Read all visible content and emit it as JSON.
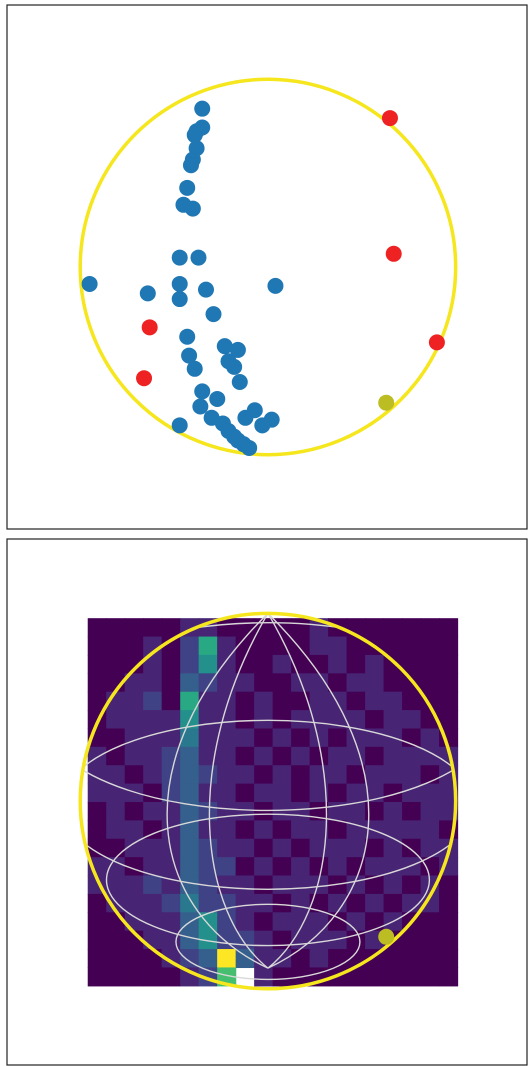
{
  "chart_data": [
    {
      "type": "scatter",
      "xlim": [
        -1.39,
        1.38
      ],
      "ylim": [
        -1.39,
        1.39
      ],
      "series": [
        {
          "color": "#1f77b4",
          "x": [
            -0.35,
            -0.35,
            -0.38,
            -0.39,
            -0.38,
            -0.4,
            -0.41,
            -0.43,
            -0.45,
            -0.4,
            -0.47,
            -0.37,
            -0.95,
            -0.47,
            -0.33,
            0.04,
            -0.64,
            -0.47,
            -0.29,
            -0.43,
            -0.23,
            -0.16,
            -0.42,
            -0.21,
            -0.18,
            -0.39,
            -0.15,
            -0.35,
            -0.27,
            -0.36,
            -0.07,
            -0.3,
            -0.12,
            0.02,
            -0.24,
            -0.47,
            -0.03,
            -0.21,
            -0.18,
            -0.16,
            -0.13,
            -0.1
          ],
          "values": [
            0.84,
            0.74,
            0.72,
            0.7,
            0.63,
            0.57,
            0.54,
            0.42,
            0.33,
            0.31,
            0.05,
            0.05,
            -0.09,
            -0.09,
            -0.12,
            -0.1,
            -0.14,
            -0.17,
            -0.25,
            -0.37,
            -0.42,
            -0.44,
            -0.47,
            -0.5,
            -0.53,
            -0.54,
            -0.61,
            -0.66,
            -0.7,
            -0.74,
            -0.76,
            -0.8,
            -0.8,
            -0.81,
            -0.83,
            -0.84,
            -0.84,
            -0.87,
            -0.9,
            -0.92,
            -0.94,
            -0.96
          ]
        },
        {
          "color": "#ee2222",
          "x": [
            0.65,
            0.67,
            -0.63,
            -0.66,
            0.9
          ],
          "values": [
            0.79,
            0.07,
            -0.32,
            -0.59,
            -0.4
          ]
        },
        {
          "color": "#bcbd22",
          "x": [
            0.63
          ],
          "values": [
            -0.72
          ]
        }
      ]
    },
    {
      "type": "heatmap",
      "xlim": [
        -1.39,
        1.38
      ],
      "ylim": [
        -1.4,
        1.39
      ],
      "extent": [
        -0.96,
        1.01,
        -0.98,
        0.97
      ],
      "clim": [
        0,
        10
      ],
      "colormap": [
        "#440154",
        "#482878",
        "#3e4989",
        "#31688e",
        "#26828e",
        "#1f9e89",
        "#35b779",
        "#6ece58",
        "#b5de2b",
        "#fde725"
      ],
      "values": [
        [
          0,
          0,
          0,
          0,
          0,
          1,
          1,
          0,
          0,
          0,
          0,
          0,
          1,
          0,
          0,
          0,
          0,
          0,
          0,
          0
        ],
        [
          0,
          0,
          0,
          1,
          0,
          2,
          6,
          1,
          0,
          0,
          0,
          0,
          1,
          1,
          0,
          0,
          0,
          0,
          0,
          0
        ],
        [
          0,
          0,
          0,
          1,
          0,
          2,
          5,
          1,
          0,
          0,
          1,
          0,
          0,
          1,
          0,
          1,
          0,
          0,
          0,
          0
        ],
        [
          0,
          0,
          1,
          1,
          0,
          3,
          2,
          1,
          1,
          0,
          0,
          1,
          1,
          0,
          1,
          1,
          0,
          0,
          0,
          0
        ],
        [
          0,
          1,
          1,
          2,
          0,
          6,
          1,
          1,
          0,
          1,
          0,
          0,
          1,
          1,
          0,
          1,
          1,
          0,
          0,
          0
        ],
        [
          0,
          1,
          1,
          1,
          1,
          5,
          1,
          1,
          0,
          1,
          0,
          1,
          1,
          1,
          1,
          0,
          1,
          1,
          0,
          0
        ],
        [
          0,
          0,
          1,
          1,
          1,
          4,
          1,
          1,
          1,
          0,
          1,
          0,
          1,
          0,
          1,
          1,
          1,
          0,
          1,
          0
        ],
        [
          1,
          0,
          1,
          1,
          2,
          3,
          1,
          1,
          0,
          1,
          0,
          1,
          0,
          1,
          1,
          0,
          1,
          1,
          1,
          1
        ],
        [
          1,
          1,
          0,
          1,
          2,
          3,
          2,
          1,
          1,
          0,
          1,
          0,
          1,
          1,
          0,
          1,
          1,
          1,
          0,
          1
        ],
        [
          1,
          1,
          1,
          0,
          2,
          3,
          1,
          1,
          0,
          1,
          1,
          0,
          1,
          0,
          1,
          1,
          0,
          1,
          1,
          1
        ],
        [
          0,
          1,
          0,
          1,
          1,
          3,
          2,
          1,
          1,
          0,
          1,
          1,
          0,
          1,
          1,
          0,
          1,
          0,
          1,
          1
        ],
        [
          0,
          1,
          1,
          0,
          1,
          3,
          1,
          1,
          0,
          1,
          0,
          1,
          1,
          0,
          1,
          1,
          1,
          1,
          1,
          0
        ],
        [
          0,
          0,
          1,
          1,
          1,
          3,
          2,
          1,
          1,
          0,
          1,
          0,
          1,
          1,
          1,
          0,
          1,
          0,
          1,
          1
        ],
        [
          1,
          1,
          0,
          1,
          1,
          3,
          2,
          2,
          0,
          1,
          0,
          1,
          0,
          1,
          0,
          1,
          1,
          1,
          0,
          1
        ],
        [
          1,
          1,
          1,
          2,
          1,
          3,
          2,
          1,
          1,
          0,
          1,
          1,
          1,
          0,
          1,
          0,
          1,
          0,
          1,
          0
        ],
        [
          0,
          1,
          1,
          1,
          2,
          4,
          2,
          2,
          1,
          1,
          0,
          1,
          0,
          1,
          0,
          1,
          0,
          1,
          1,
          0
        ],
        [
          0,
          0,
          1,
          1,
          1,
          3,
          5,
          2,
          1,
          0,
          1,
          1,
          1,
          0,
          1,
          0,
          1,
          0,
          0,
          0
        ],
        [
          0,
          0,
          0,
          1,
          1,
          3,
          5,
          2,
          2,
          1,
          0,
          1,
          1,
          1,
          0,
          1,
          0,
          0,
          0,
          0
        ],
        [
          0,
          0,
          0,
          0,
          1,
          2,
          3,
          10,
          3,
          1,
          1,
          0,
          1,
          0,
          0,
          0,
          0,
          0,
          0,
          0
        ],
        [
          0,
          0,
          0,
          0,
          0,
          1,
          2,
          7,
          null,
          1,
          0,
          0,
          0,
          0,
          0,
          0,
          0,
          0,
          0,
          0
        ]
      ],
      "marker": {
        "x": 0.63,
        "y": -0.72,
        "color": "#bcbd22"
      }
    }
  ]
}
